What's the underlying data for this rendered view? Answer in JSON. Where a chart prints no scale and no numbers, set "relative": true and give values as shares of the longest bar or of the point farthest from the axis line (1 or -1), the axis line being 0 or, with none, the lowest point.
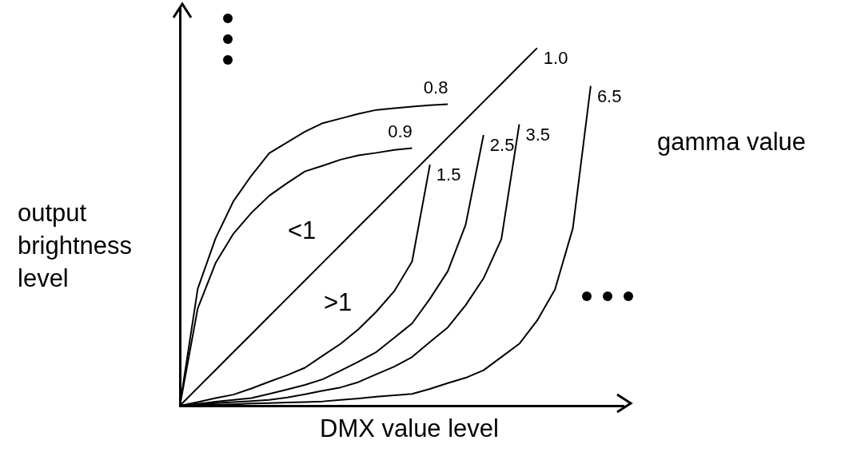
{
  "chart_data": {
    "type": "line",
    "relative": true,
    "xlabel": "DMX value level",
    "ylabel": "output brightness level",
    "legend_title": "gamma value",
    "annotations": [
      "<1",
      ">1"
    ],
    "legend": false,
    "grid": false,
    "marker": "none",
    "line_style": "solid",
    "categories": [
      null,
      null,
      null,
      null,
      null,
      null,
      null,
      null,
      null,
      null,
      null,
      null,
      null,
      null,
      null,
      null,
      null,
      null,
      null,
      null,
      null,
      null,
      null,
      null
    ],
    "series": [
      {
        "name": "0.8",
        "color": "#000000",
        "values": [
          0,
          0.327,
          0.468,
          0.572,
          0.643,
          0.706,
          0.736,
          0.766,
          0.79,
          0.803,
          0.816,
          0.827,
          0.832,
          0.836,
          0.84,
          0.843,
          null,
          null,
          null,
          null,
          null,
          null,
          null,
          null
        ]
      },
      {
        "name": "0.9",
        "color": "#000000",
        "values": [
          0,
          0.272,
          0.399,
          0.481,
          0.539,
          0.587,
          0.622,
          0.655,
          0.671,
          0.688,
          0.7,
          0.707,
          0.715,
          0.72,
          null,
          null,
          null,
          null,
          null,
          null,
          null,
          null,
          null,
          null
        ]
      },
      {
        "name": "1.0",
        "color": "#000000",
        "values": [
          0,
          0.05,
          0.1,
          0.15,
          0.2,
          0.25,
          0.3,
          0.35,
          0.4,
          0.45,
          0.5,
          0.55,
          0.6,
          0.65,
          0.7,
          0.75,
          0.8,
          0.85,
          0.9,
          0.95,
          1,
          null,
          null,
          null
        ]
      },
      {
        "name": "1.5",
        "color": "#000000",
        "values": [
          0,
          0.01,
          0.021,
          0.031,
          0.048,
          0.067,
          0.085,
          0.106,
          0.14,
          0.173,
          0.214,
          0.263,
          0.32,
          0.403,
          0.674,
          null,
          null,
          null,
          null,
          null,
          null,
          null,
          null,
          null
        ]
      },
      {
        "name": "2.5",
        "color": "#000000",
        "values": [
          0,
          0.005,
          0.011,
          0.016,
          0.021,
          0.033,
          0.045,
          0.058,
          0.074,
          0.098,
          0.123,
          0.15,
          0.19,
          0.23,
          0.299,
          0.376,
          0.506,
          0.757,
          null,
          null,
          null,
          null,
          null,
          null
        ]
      },
      {
        "name": "3.5",
        "color": "#000000",
        "values": [
          0,
          0.003,
          0.007,
          0.01,
          0.013,
          0.016,
          0.023,
          0.032,
          0.042,
          0.051,
          0.066,
          0.088,
          0.109,
          0.136,
          0.178,
          0.219,
          0.281,
          0.356,
          0.466,
          0.787,
          null,
          null,
          null,
          null
        ]
      },
      {
        "name": "6.5",
        "color": "#000000",
        "values": [
          0,
          0.001,
          0.003,
          0.004,
          0.006,
          0.007,
          0.009,
          0.01,
          0.012,
          0.016,
          0.02,
          0.025,
          0.029,
          0.033,
          0.047,
          0.063,
          0.078,
          0.099,
          0.136,
          0.173,
          0.238,
          0.325,
          0.496,
          0.894
        ]
      }
    ]
  }
}
